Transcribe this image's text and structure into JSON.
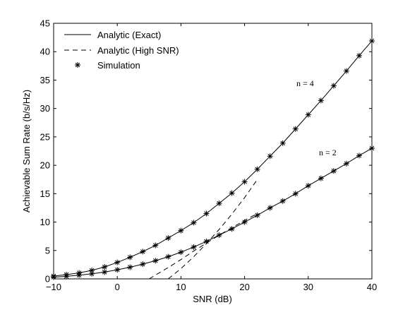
{
  "chart_data": {
    "type": "line",
    "title": "",
    "xlabel": "SNR (dB)",
    "ylabel": "Achievable Sum Rate (b/s/Hz)",
    "xlim": [
      -10,
      40
    ],
    "ylim": [
      0,
      45
    ],
    "xticks": [
      -10,
      0,
      10,
      20,
      30,
      40
    ],
    "yticks": [
      0,
      5,
      10,
      15,
      20,
      25,
      30,
      35,
      40,
      45
    ],
    "grid": false,
    "legend_position": "top-left",
    "legend": [
      {
        "label": "Analytic (Exact)",
        "style": "solid line"
      },
      {
        "label": "Analytic (High SNR)",
        "style": "dashed line"
      },
      {
        "label": "Simulation",
        "style": "asterisk marker"
      }
    ],
    "annotations": [
      {
        "text": "n = 4",
        "x": 31.5,
        "y": 34.5
      },
      {
        "text": "n = 2",
        "x": 32.5,
        "y": 22.0
      }
    ],
    "series": [
      {
        "name": "Analytic (Exact)",
        "group": "n = 4",
        "style": "solid",
        "x": [
          -10,
          -8,
          -6,
          -4,
          -2,
          0,
          2,
          4,
          6,
          8,
          10,
          12,
          14,
          16,
          18,
          20,
          22,
          24,
          26,
          28,
          30,
          32,
          34,
          36,
          38,
          40
        ],
        "y": [
          0.5,
          0.75,
          1.05,
          1.5,
          2.1,
          2.9,
          3.8,
          4.8,
          5.9,
          7.2,
          8.5,
          9.9,
          11.5,
          13.3,
          15.1,
          17.1,
          19.3,
          21.6,
          23.9,
          26.4,
          28.9,
          31.4,
          34.0,
          36.6,
          39.3,
          41.9
        ]
      },
      {
        "name": "Analytic (Exact)",
        "group": "n = 2",
        "style": "solid",
        "x": [
          -10,
          -8,
          -6,
          -4,
          -2,
          0,
          2,
          4,
          6,
          8,
          10,
          12,
          14,
          16,
          18,
          20,
          22,
          24,
          26,
          28,
          30,
          32,
          34,
          36,
          38,
          40
        ],
        "y": [
          0.3,
          0.45,
          0.65,
          0.9,
          1.2,
          1.6,
          2.05,
          2.6,
          3.2,
          3.9,
          4.7,
          5.6,
          6.6,
          7.7,
          8.8,
          10.0,
          11.2,
          12.5,
          13.7,
          15.0,
          16.4,
          17.7,
          19.0,
          20.3,
          21.7,
          23.0
        ]
      },
      {
        "name": "Analytic (High SNR)",
        "group": "n = 4",
        "style": "dashed",
        "x": [
          8,
          10,
          12,
          14,
          16,
          18,
          20,
          22
        ],
        "y": [
          0.0,
          1.8,
          3.9,
          6.2,
          8.7,
          11.4,
          14.3,
          17.5
        ]
      },
      {
        "name": "Analytic (High SNR)",
        "group": "n = 2",
        "style": "dashed",
        "x": [
          5,
          8,
          10,
          12,
          14,
          16,
          18,
          20,
          22
        ],
        "y": [
          0.0,
          2.0,
          3.4,
          4.9,
          6.3,
          7.7,
          9.0,
          10.3,
          11.5
        ]
      },
      {
        "name": "Simulation",
        "group": "n = 4",
        "style": "marker",
        "x": [
          -10,
          -8,
          -6,
          -4,
          -2,
          0,
          2,
          4,
          6,
          8,
          10,
          12,
          14,
          16,
          18,
          20,
          22,
          24,
          26,
          28,
          30,
          32,
          34,
          36,
          38,
          40
        ],
        "y": [
          0.5,
          0.75,
          1.05,
          1.5,
          2.1,
          2.9,
          3.8,
          4.8,
          5.9,
          7.2,
          8.5,
          9.9,
          11.5,
          13.3,
          15.1,
          17.1,
          19.3,
          21.6,
          23.9,
          26.4,
          28.9,
          31.4,
          34.0,
          36.6,
          39.3,
          41.9
        ]
      },
      {
        "name": "Simulation",
        "group": "n = 2",
        "style": "marker",
        "x": [
          -10,
          -8,
          -6,
          -4,
          -2,
          0,
          2,
          4,
          6,
          8,
          10,
          12,
          14,
          16,
          18,
          20,
          22,
          24,
          26,
          28,
          30,
          32,
          34,
          36,
          38,
          40
        ],
        "y": [
          0.3,
          0.45,
          0.65,
          0.9,
          1.2,
          1.6,
          2.05,
          2.6,
          3.2,
          3.9,
          4.7,
          5.6,
          6.6,
          7.7,
          8.8,
          10.0,
          11.2,
          12.5,
          13.7,
          15.0,
          16.4,
          17.7,
          19.0,
          20.3,
          21.7,
          23.0
        ]
      }
    ]
  }
}
